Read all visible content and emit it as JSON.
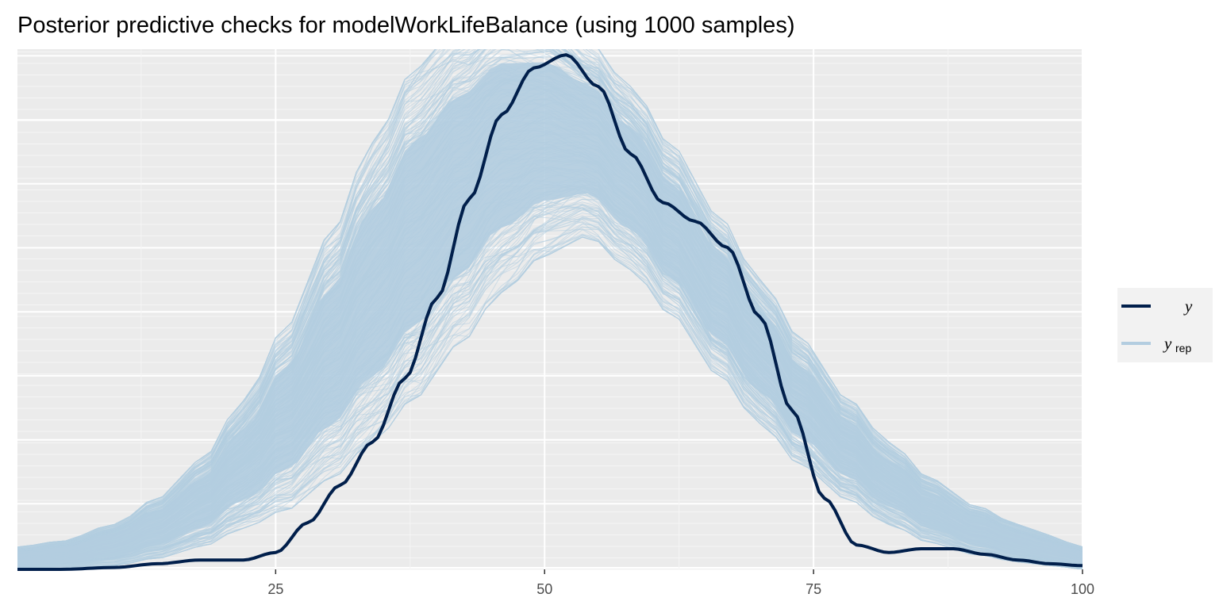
{
  "colors": {
    "panel_background": "#ebebeb",
    "grid_major": "#ffffff",
    "grid_minor": "#f5f5f5",
    "y_line": "#011f4b",
    "yrep_line": "#b3cde0",
    "tick_text": "#4d4d4d",
    "legend_background": "#f2f2f2"
  },
  "chart_data": {
    "type": "line",
    "title": "Posterior predictive checks for modelWorkLifeBalance (using 1000 samples)",
    "xlabel": "",
    "ylabel": "",
    "xlim": [
      1,
      100
    ],
    "ylim": [
      0,
      0.0278
    ],
    "x_ticks": [
      25,
      50,
      75,
      100
    ],
    "x_tick_labels": [
      "25",
      "50",
      "75",
      "100"
    ],
    "y_tick_labels_shown": false,
    "grid": true,
    "legend_position": "right",
    "legend": [
      {
        "symbol": "y",
        "subscript": "",
        "series": "y"
      },
      {
        "symbol": "y",
        "subscript": "rep",
        "series": "yrep"
      }
    ],
    "series": [
      {
        "name": "y",
        "x": [
          1,
          5,
          10,
          14,
          18,
          22,
          25,
          28,
          31,
          34,
          37,
          40,
          43,
          46,
          49,
          52,
          55,
          58,
          61,
          64,
          67,
          70,
          73,
          76,
          79,
          82,
          85,
          88,
          91,
          94,
          97,
          100
        ],
        "values": [
          0.0,
          0.0,
          0.0001,
          0.0003,
          0.0005,
          0.0005,
          0.0009,
          0.0025,
          0.0045,
          0.0068,
          0.0102,
          0.0145,
          0.0198,
          0.0243,
          0.0268,
          0.0275,
          0.0258,
          0.0222,
          0.0196,
          0.0186,
          0.0172,
          0.0135,
          0.0085,
          0.0038,
          0.0013,
          0.0009,
          0.0011,
          0.0011,
          0.0008,
          0.0005,
          0.0003,
          0.0002
        ]
      },
      {
        "name": "yrep",
        "description_band_low": [
          0.0,
          0.0,
          0.0002,
          0.0006,
          0.0012,
          0.0022,
          0.0032,
          0.0048,
          0.0068,
          0.0092,
          0.012,
          0.0148,
          0.0168,
          0.0178,
          0.016,
          0.0135,
          0.0105,
          0.0078,
          0.0055,
          0.0038,
          0.0024,
          0.0014,
          0.0008,
          0.0004,
          0.0002,
          0.0001,
          0.0
        ],
        "description_band_high": [
          0.0012,
          0.0015,
          0.0024,
          0.0038,
          0.0058,
          0.009,
          0.013,
          0.0178,
          0.0228,
          0.0268,
          0.029,
          0.0305,
          0.03,
          0.0282,
          0.0258,
          0.0225,
          0.019,
          0.0155,
          0.0122,
          0.0092,
          0.0068,
          0.0048,
          0.0034,
          0.0024,
          0.0018,
          0.0014,
          0.0012
        ],
        "band_x": [
          1,
          5,
          10,
          14,
          18,
          22,
          26,
          30,
          34,
          38,
          42,
          46,
          50,
          54,
          58,
          62,
          66,
          70,
          74,
          78,
          82,
          86,
          90,
          94,
          97,
          99,
          100
        ],
        "draws_shown": 1000
      }
    ]
  }
}
